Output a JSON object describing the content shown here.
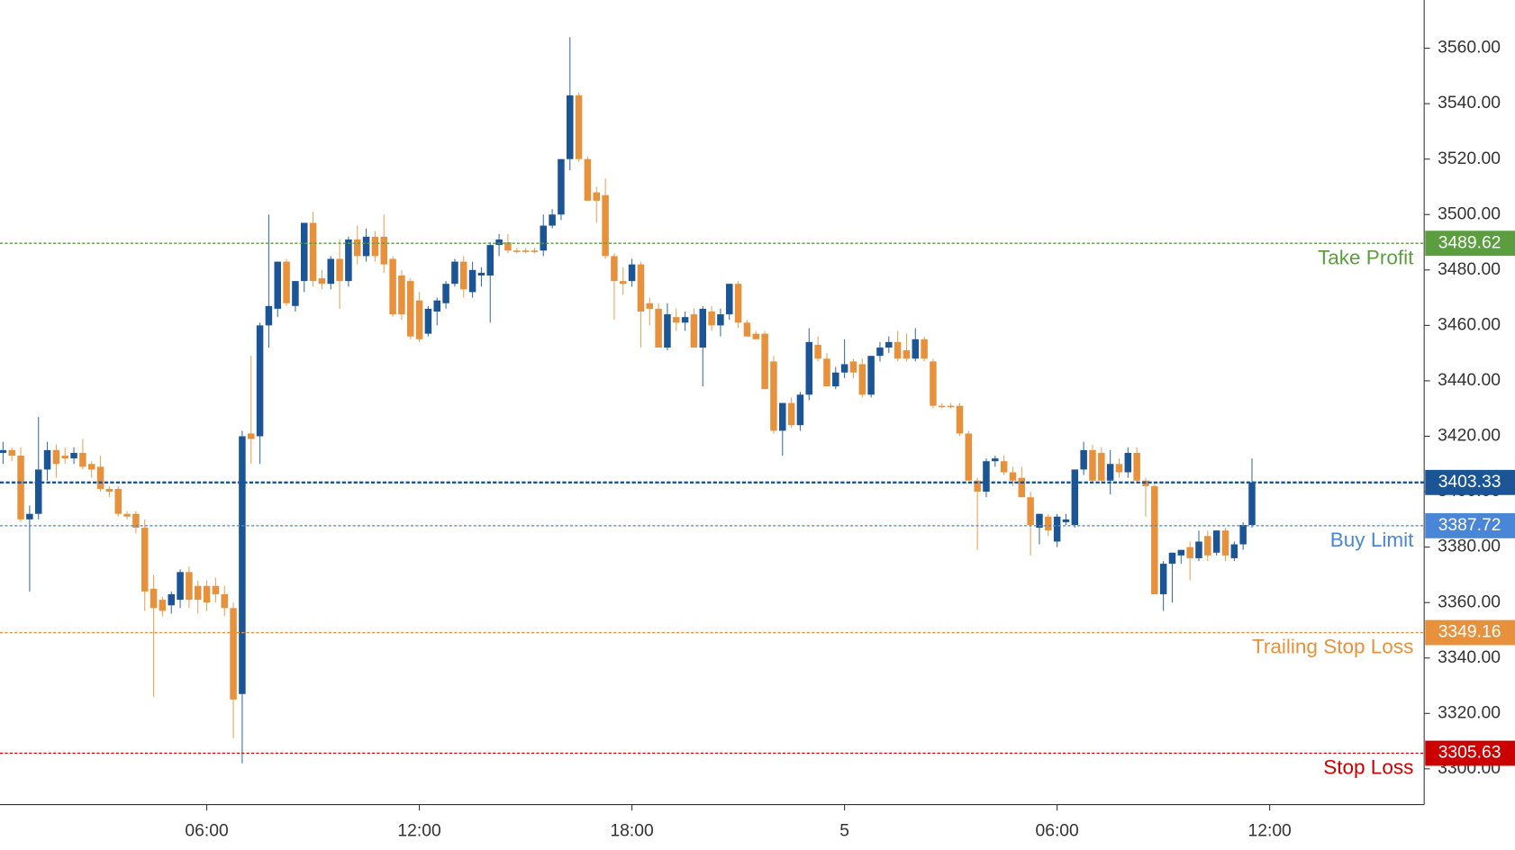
{
  "chart_data": {
    "type": "candlestick",
    "up_color": "#1b5596",
    "down_color": "#e8913d",
    "x": [
      0.25,
      0.5,
      0.75,
      1,
      1.25,
      1.5,
      1.75,
      2,
      2.25,
      2.5,
      2.75,
      3,
      3.25,
      3.5,
      3.75,
      4,
      4.25,
      4.5,
      4.75,
      5,
      5.25,
      5.5,
      5.75,
      6,
      6.25,
      6.5,
      6.75,
      7,
      7.25,
      7.5,
      7.75,
      8,
      8.25,
      8.5,
      8.75,
      9,
      9.25,
      9.5,
      9.75,
      10,
      10.25,
      10.5,
      10.75,
      11,
      11.25,
      11.5,
      11.75,
      12,
      12.25,
      12.5,
      12.75,
      13,
      13.25,
      13.5,
      13.75,
      14,
      14.25,
      14.5,
      14.75,
      15,
      15.25,
      15.5,
      15.75,
      16,
      16.25,
      16.5,
      16.75,
      17,
      17.25,
      17.5,
      17.75,
      18,
      18.25,
      18.5,
      18.75,
      19,
      19.25,
      19.5,
      19.75,
      20,
      20.25,
      20.5,
      20.75,
      21,
      21.25,
      21.5,
      21.75,
      22,
      22.25,
      22.5,
      22.75,
      23,
      23.25,
      23.5,
      23.75,
      24,
      24.25,
      24.5,
      24.75,
      25,
      25.25,
      25.5,
      25.75,
      26,
      26.25,
      26.5,
      26.75,
      27,
      27.25,
      27.5,
      27.75,
      28,
      28.25,
      28.5,
      28.75,
      29,
      29.25,
      29.5,
      29.75,
      30,
      30.25,
      30.5,
      30.75,
      31,
      31.25,
      31.5,
      31.75,
      32,
      32.25,
      32.5,
      32.75,
      33,
      33.25,
      33.5,
      33.75,
      34,
      34.25,
      34.5,
      34.75,
      35,
      35.25,
      35.5
    ],
    "open": [
      3414,
      3415,
      3413,
      3390,
      3392,
      3408,
      3415,
      3413,
      3412,
      3414,
      3410,
      3409,
      3401,
      3401,
      3392,
      3392,
      3387,
      3365,
      3361,
      3359,
      3361,
      3371,
      3366,
      3366,
      3366,
      3363,
      3358,
      3327,
      3421,
      3420,
      3460,
      3466,
      3483,
      3467,
      3476,
      3497,
      3477,
      3475,
      3484,
      3476,
      3491,
      3485,
      3492,
      3492,
      3484,
      3478,
      3476,
      3469,
      3457,
      3465,
      3468,
      3475,
      3483,
      3472,
      3478,
      3478,
      3489,
      3490,
      3487,
      3487,
      3487,
      3487,
      3496,
      3500,
      3520,
      3543,
      3520,
      3508,
      3507,
      3485,
      3476,
      3476,
      3482,
      3468,
      3466,
      3452,
      3463,
      3461,
      3464,
      3452,
      3465,
      3460,
      3464,
      3475,
      3461,
      3457,
      3457,
      3447,
      3422,
      3432,
      3424,
      3435,
      3453,
      3448,
      3438,
      3443,
      3447,
      3446,
      3435,
      3449,
      3452,
      3454,
      3451,
      3448,
      3455,
      3447,
      3431,
      3431,
      3431,
      3421,
      3404,
      3400,
      3411,
      3411,
      3407,
      3405,
      3398,
      3387,
      3391,
      3382,
      3389,
      3388,
      3408,
      3415,
      3414,
      3404,
      3410,
      3407,
      3414,
      3404,
      3402,
      3363,
      3374,
      3377,
      3380,
      3376,
      3384,
      3378,
      3386,
      3376,
      3381,
      3388
    ],
    "high": [
      3418,
      3416,
      3416,
      3395,
      3427,
      3418,
      3417,
      3416,
      3416,
      3419,
      3411,
      3413,
      3402,
      3402,
      3393,
      3393,
      3390,
      3370,
      3362,
      3364,
      3372,
      3373,
      3368,
      3368,
      3369,
      3366,
      3360,
      3422,
      3449,
      3461,
      3500,
      3483,
      3484,
      3476,
      3497,
      3501,
      3480,
      3485,
      3491,
      3492,
      3496,
      3495,
      3494,
      3500,
      3485,
      3480,
      3477,
      3472,
      3467,
      3470,
      3476,
      3484,
      3485,
      3483,
      3481,
      3490,
      3493,
      3493,
      3488,
      3488,
      3488,
      3500,
      3502,
      3520,
      3564,
      3544,
      3521,
      3510,
      3513,
      3486,
      3481,
      3484,
      3483,
      3470,
      3468,
      3468,
      3466,
      3465,
      3466,
      3467,
      3467,
      3466,
      3475,
      3476,
      3462,
      3458,
      3458,
      3449,
      3432,
      3434,
      3436,
      3459,
      3456,
      3450,
      3445,
      3455,
      3448,
      3448,
      3449,
      3454,
      3456,
      3458,
      3457,
      3459,
      3456,
      3448,
      3432,
      3432,
      3432,
      3422,
      3405,
      3412,
      3413,
      3413,
      3409,
      3409,
      3400,
      3392,
      3392,
      3392,
      3392,
      3408,
      3418,
      3417,
      3416,
      3415,
      3412,
      3416,
      3416,
      3405,
      3403,
      3375,
      3378,
      3379,
      3382,
      3386,
      3386,
      3386,
      3387,
      3382,
      3389,
      3412
    ],
    "low": [
      3410,
      3411,
      3389,
      3364,
      3390,
      3404,
      3405,
      3410,
      3410,
      3408,
      3405,
      3400,
      3398,
      3391,
      3390,
      3385,
      3357,
      3326,
      3355,
      3356,
      3358,
      3358,
      3356,
      3357,
      3360,
      3355,
      3311,
      3302,
      3410,
      3410,
      3452,
      3463,
      3467,
      3465,
      3472,
      3474,
      3473,
      3473,
      3466,
      3474,
      3482,
      3483,
      3483,
      3479,
      3463,
      3462,
      3455,
      3454,
      3456,
      3460,
      3466,
      3474,
      3470,
      3470,
      3474,
      3461,
      3485,
      3486,
      3486,
      3486,
      3486,
      3485,
      3495,
      3498,
      3516,
      3519,
      3505,
      3497,
      3484,
      3462,
      3471,
      3474,
      3452,
      3460,
      3452,
      3451,
      3458,
      3458,
      3452,
      3438,
      3458,
      3456,
      3462,
      3459,
      3456,
      3455,
      3437,
      3421,
      3413,
      3423,
      3422,
      3433,
      3447,
      3438,
      3437,
      3441,
      3441,
      3434,
      3434,
      3447,
      3450,
      3447,
      3447,
      3447,
      3447,
      3430,
      3430,
      3430,
      3420,
      3404,
      3379,
      3398,
      3409,
      3406,
      3402,
      3398,
      3377,
      3381,
      3384,
      3380,
      3388,
      3387,
      3406,
      3403,
      3403,
      3399,
      3405,
      3405,
      3403,
      3391,
      3363,
      3357,
      3360,
      3374,
      3368,
      3375,
      3375,
      3377,
      3375,
      3375,
      3379,
      3387
    ],
    "close": [
      3415,
      3413,
      3390,
      3392,
      3408,
      3415,
      3410,
      3412,
      3414,
      3409,
      3408,
      3401,
      3400,
      3392,
      3391,
      3387,
      3364,
      3358,
      3357,
      3363,
      3371,
      3361,
      3361,
      3360,
      3363,
      3358,
      3325,
      3420,
      3419,
      3460,
      3467,
      3483,
      3468,
      3476,
      3497,
      3476,
      3475,
      3484,
      3476,
      3491,
      3485,
      3492,
      3485,
      3482,
      3464,
      3464,
      3456,
      3455,
      3466,
      3469,
      3475,
      3483,
      3473,
      3480,
      3479,
      3489,
      3491,
      3487,
      3487,
      3487,
      3487,
      3496,
      3500,
      3520,
      3543,
      3520,
      3505,
      3505,
      3485,
      3476,
      3475,
      3482,
      3465,
      3466,
      3452,
      3464,
      3461,
      3463,
      3452,
      3466,
      3460,
      3464,
      3475,
      3461,
      3456,
      3455,
      3437,
      3422,
      3432,
      3424,
      3435,
      3454,
      3448,
      3438,
      3443,
      3446,
      3443,
      3435,
      3449,
      3452,
      3454,
      3448,
      3448,
      3455,
      3448,
      3431,
      3431,
      3431,
      3421,
      3404,
      3400,
      3411,
      3412,
      3407,
      3404,
      3398,
      3388,
      3392,
      3386,
      3391,
      3390,
      3408,
      3415,
      3404,
      3404,
      3410,
      3407,
      3414,
      3404,
      3402,
      3363,
      3374,
      3378,
      3379,
      3376,
      3382,
      3377,
      3386,
      3377,
      3381,
      3388,
      3403.33
    ],
    "xlim": [
      0.164,
      40.36
    ],
    "xticks": [
      {
        "value": 6,
        "label": "06:00"
      },
      {
        "value": 12,
        "label": "12:00"
      },
      {
        "value": 18,
        "label": "18:00"
      },
      {
        "value": 24,
        "label": "5"
      },
      {
        "value": 30,
        "label": "06:00"
      },
      {
        "value": 36,
        "label": "12:00"
      }
    ],
    "ylim": [
      3287.1,
      3577.4
    ],
    "yticks": [
      {
        "value": 3300,
        "label": "3300.00"
      },
      {
        "value": 3320,
        "label": "3320.00"
      },
      {
        "value": 3340,
        "label": "3340.00"
      },
      {
        "value": 3360,
        "label": "3360.00"
      },
      {
        "value": 3380,
        "label": "3380.00"
      },
      {
        "value": 3400,
        "label": "3400.00"
      },
      {
        "value": 3420,
        "label": "3420.00"
      },
      {
        "value": 3440,
        "label": "3440.00"
      },
      {
        "value": 3460,
        "label": "3460.00"
      },
      {
        "value": 3480,
        "label": "3480.00"
      },
      {
        "value": 3500,
        "label": "3500.00"
      },
      {
        "value": 3520,
        "label": "3520.00"
      },
      {
        "value": 3540,
        "label": "3540.00"
      },
      {
        "value": 3560,
        "label": "3560.00"
      }
    ],
    "grid": false,
    "order_lines": [
      {
        "name": "Take Profit",
        "value": 3489.62,
        "color": "#5a9e3f"
      },
      {
        "name": "Buy Limit",
        "value": 3387.72,
        "color": "#4a86d8"
      },
      {
        "name": "Trailing Stop Loss",
        "value": 3349.16,
        "color": "#e8913d"
      },
      {
        "name": "Stop Loss",
        "value": 3305.63,
        "color": "#cc0000"
      }
    ],
    "current_price": {
      "value": 3403.33,
      "color": "#1b5596"
    }
  }
}
